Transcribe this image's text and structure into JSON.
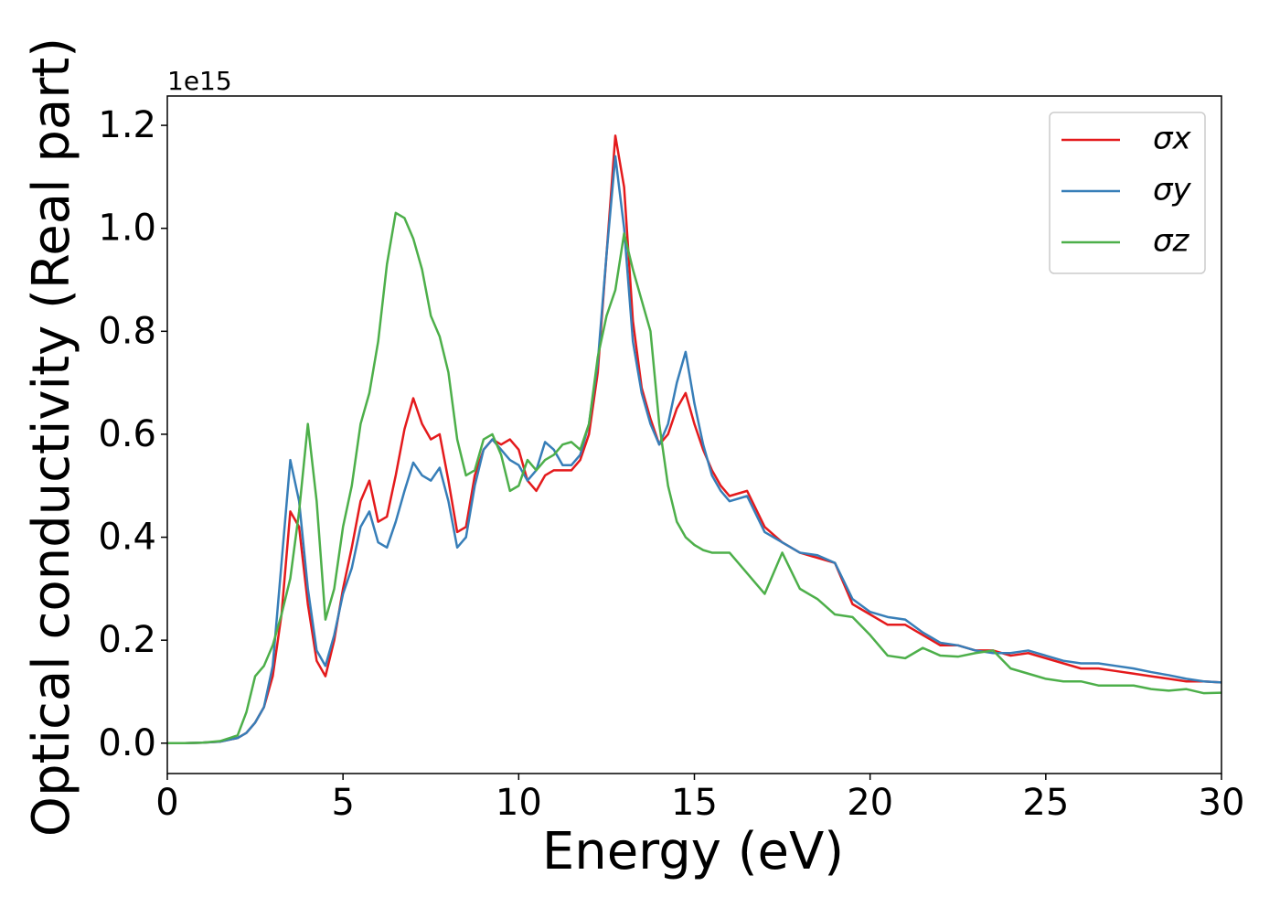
{
  "chart_data": {
    "type": "line",
    "xlabel": "Energy (eV)",
    "ylabel": "Optical conductivity (Real part)",
    "y_offset_label": "1e15",
    "xlim": [
      0,
      30
    ],
    "ylim": [
      -0.059,
      1.257
    ],
    "xticks": [
      0,
      5,
      10,
      15,
      20,
      25,
      30
    ],
    "yticks": [
      {
        "value": 0,
        "label": "0.0"
      },
      {
        "value": 0.2,
        "label": "0.2"
      },
      {
        "value": 0.4,
        "label": "0.4"
      },
      {
        "value": 0.6,
        "label": "0.6"
      },
      {
        "value": 0.8,
        "label": "0.8"
      },
      {
        "value": 1.0,
        "label": "1.0"
      },
      {
        "value": 1.2,
        "label": "1.2"
      }
    ],
    "legend": "upper right",
    "x": [
      0,
      0.5,
      1,
      1.5,
      2,
      2.25,
      2.5,
      2.75,
      3,
      3.25,
      3.5,
      3.75,
      4,
      4.25,
      4.5,
      4.75,
      5,
      5.25,
      5.5,
      5.75,
      6,
      6.25,
      6.5,
      6.75,
      7,
      7.25,
      7.5,
      7.75,
      8,
      8.25,
      8.5,
      8.75,
      9,
      9.25,
      9.5,
      9.75,
      10,
      10.25,
      10.5,
      10.75,
      11,
      11.25,
      11.5,
      11.75,
      12,
      12.25,
      12.5,
      12.75,
      13,
      13.25,
      13.5,
      13.75,
      14,
      14.25,
      14.5,
      14.75,
      15,
      15.25,
      15.5,
      15.75,
      16,
      16.5,
      17,
      17.5,
      18,
      18.5,
      19,
      19.5,
      20,
      20.5,
      21,
      21.5,
      22,
      22.5,
      23,
      23.5,
      24,
      24.5,
      25,
      25.5,
      26,
      26.5,
      27,
      27.5,
      28,
      28.5,
      29,
      29.5,
      30
    ],
    "series": [
      {
        "name": "σx",
        "color": "#e41a1c",
        "values": [
          0,
          0,
          0.001,
          0.003,
          0.01,
          0.02,
          0.04,
          0.07,
          0.13,
          0.25,
          0.45,
          0.42,
          0.27,
          0.16,
          0.13,
          0.2,
          0.3,
          0.38,
          0.47,
          0.51,
          0.43,
          0.44,
          0.52,
          0.61,
          0.67,
          0.62,
          0.59,
          0.6,
          0.51,
          0.41,
          0.42,
          0.52,
          0.57,
          0.59,
          0.58,
          0.59,
          0.57,
          0.51,
          0.49,
          0.52,
          0.53,
          0.53,
          0.53,
          0.55,
          0.6,
          0.72,
          0.95,
          1.18,
          1.08,
          0.82,
          0.69,
          0.63,
          0.58,
          0.6,
          0.65,
          0.68,
          0.62,
          0.57,
          0.53,
          0.5,
          0.48,
          0.49,
          0.42,
          0.39,
          0.37,
          0.36,
          0.35,
          0.27,
          0.25,
          0.23,
          0.23,
          0.21,
          0.19,
          0.19,
          0.18,
          0.18,
          0.17,
          0.175,
          0.165,
          0.155,
          0.145,
          0.145,
          0.14,
          0.135,
          0.13,
          0.125,
          0.12,
          0.12,
          0.118
        ]
      },
      {
        "name": "σy",
        "color": "#377eb8",
        "values": [
          0,
          0,
          0.001,
          0.003,
          0.01,
          0.02,
          0.04,
          0.07,
          0.15,
          0.35,
          0.55,
          0.47,
          0.3,
          0.18,
          0.15,
          0.21,
          0.29,
          0.34,
          0.42,
          0.45,
          0.39,
          0.38,
          0.43,
          0.49,
          0.545,
          0.52,
          0.51,
          0.535,
          0.47,
          0.38,
          0.4,
          0.5,
          0.57,
          0.59,
          0.57,
          0.55,
          0.54,
          0.51,
          0.53,
          0.585,
          0.57,
          0.54,
          0.54,
          0.56,
          0.62,
          0.74,
          0.95,
          1.14,
          1.0,
          0.78,
          0.68,
          0.62,
          0.58,
          0.62,
          0.7,
          0.76,
          0.66,
          0.58,
          0.52,
          0.49,
          0.47,
          0.48,
          0.41,
          0.39,
          0.37,
          0.365,
          0.35,
          0.28,
          0.255,
          0.245,
          0.24,
          0.215,
          0.195,
          0.19,
          0.18,
          0.175,
          0.175,
          0.18,
          0.17,
          0.16,
          0.155,
          0.155,
          0.15,
          0.145,
          0.138,
          0.132,
          0.125,
          0.12,
          0.118
        ]
      },
      {
        "name": "σz",
        "color": "#4daf4a",
        "values": [
          0,
          0,
          0.001,
          0.004,
          0.015,
          0.06,
          0.13,
          0.15,
          0.19,
          0.25,
          0.32,
          0.45,
          0.62,
          0.47,
          0.24,
          0.3,
          0.42,
          0.5,
          0.62,
          0.68,
          0.78,
          0.93,
          1.03,
          1.02,
          0.98,
          0.92,
          0.83,
          0.79,
          0.72,
          0.59,
          0.52,
          0.53,
          0.59,
          0.6,
          0.56,
          0.49,
          0.5,
          0.55,
          0.53,
          0.55,
          0.56,
          0.58,
          0.585,
          0.57,
          0.62,
          0.75,
          0.83,
          0.88,
          0.99,
          0.92,
          0.86,
          0.8,
          0.62,
          0.5,
          0.43,
          0.4,
          0.385,
          0.375,
          0.37,
          0.37,
          0.37,
          0.33,
          0.29,
          0.37,
          0.3,
          0.28,
          0.25,
          0.245,
          0.21,
          0.17,
          0.165,
          0.185,
          0.17,
          0.168,
          0.175,
          0.18,
          0.145,
          0.135,
          0.125,
          0.12,
          0.12,
          0.112,
          0.112,
          0.112,
          0.105,
          0.102,
          0.105,
          0.097,
          0.098
        ]
      }
    ]
  }
}
